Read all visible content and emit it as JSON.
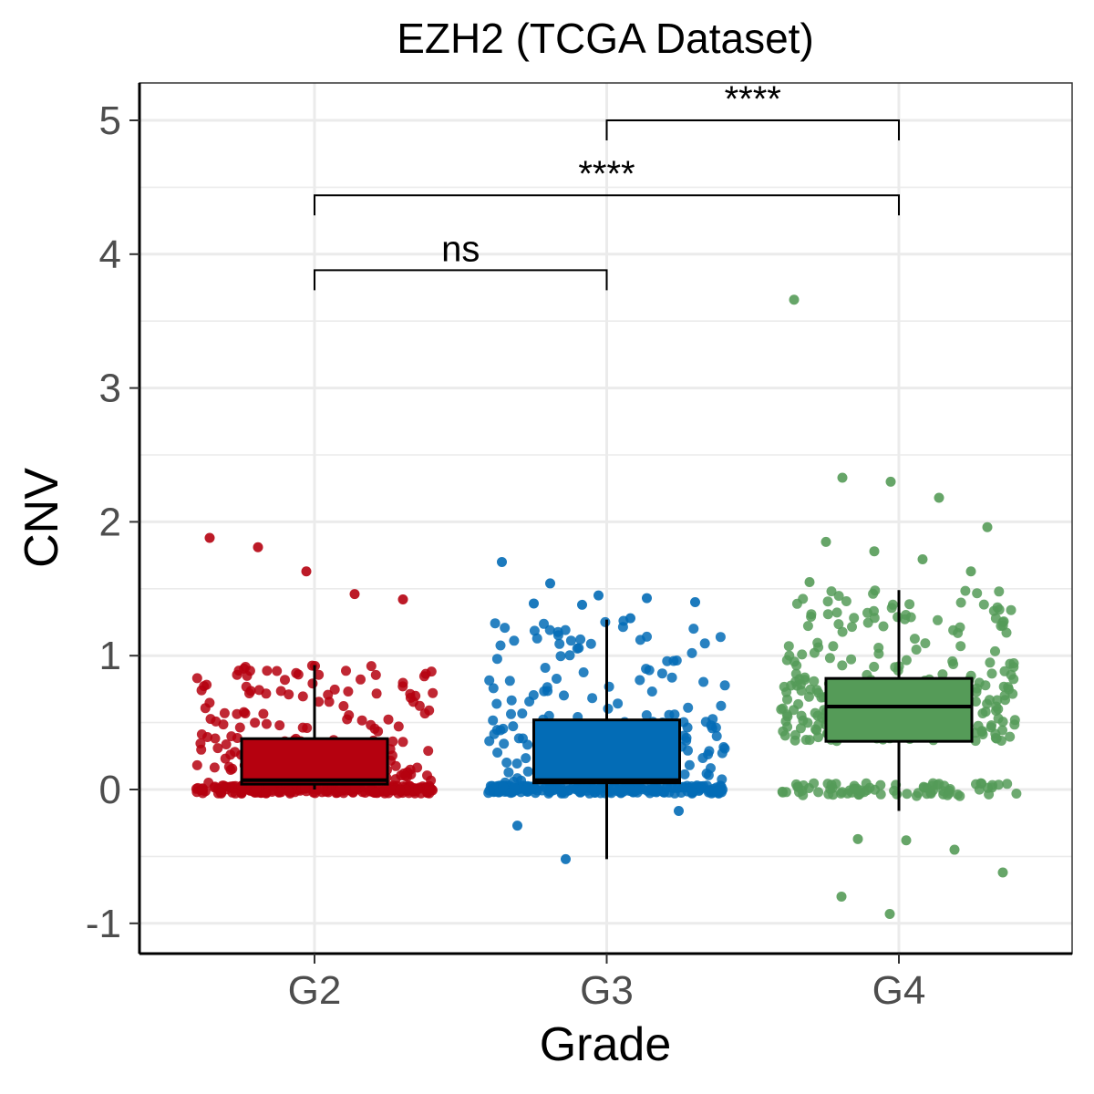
{
  "chart_data": {
    "type": "box",
    "title": "EZH2 (TCGA Dataset)",
    "xlabel": "Grade",
    "ylabel": "CNV",
    "categories": [
      "G2",
      "G3",
      "G4"
    ],
    "ylim": [
      -1.2,
      5.3
    ],
    "yticks": [
      -1,
      0,
      1,
      2,
      3,
      4,
      5
    ],
    "grid": true,
    "boxes": [
      {
        "category": "G2",
        "color": "#b5010f",
        "q1": 0.04,
        "median": 0.07,
        "q3": 0.38,
        "whisker_low": 0.0,
        "whisker_high": 0.93
      },
      {
        "category": "G3",
        "color": "#036cb6",
        "q1": 0.05,
        "median": 0.07,
        "q3": 0.52,
        "whisker_low": -0.52,
        "whisker_high": 1.27
      },
      {
        "category": "G4",
        "color": "#559b58",
        "q1": 0.36,
        "median": 0.62,
        "q3": 0.83,
        "whisker_low": -0.16,
        "whisker_high": 1.49
      }
    ],
    "outliers": [
      {
        "category": "G2",
        "y": [
          1.88,
          1.81,
          1.63,
          1.46,
          1.42
        ]
      },
      {
        "category": "G3",
        "y": [
          1.7,
          1.54,
          1.45,
          1.43,
          1.4,
          1.39,
          1.38,
          1.28,
          -0.16,
          -0.27,
          -0.52
        ]
      },
      {
        "category": "G4",
        "y": [
          3.66,
          2.33,
          2.3,
          2.18,
          1.96,
          1.85,
          1.78,
          1.72,
          1.63,
          1.55,
          -0.37,
          -0.38,
          -0.45,
          -0.62,
          -0.8,
          -0.93
        ]
      }
    ],
    "comparisons": [
      {
        "from": "G2",
        "to": "G3",
        "y": 3.88,
        "label": "ns"
      },
      {
        "from": "G2",
        "to": "G4",
        "y": 4.44,
        "label": "****"
      },
      {
        "from": "G3",
        "to": "G4",
        "y": 5.0,
        "label": "****"
      }
    ]
  }
}
